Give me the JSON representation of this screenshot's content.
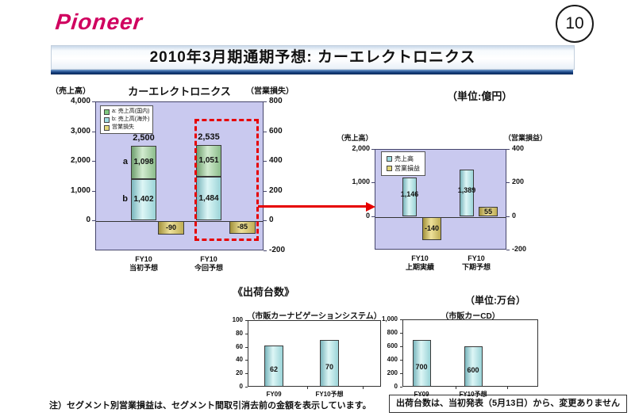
{
  "header": {
    "logo_text": "Pioneer",
    "page_number": "10",
    "title": "2010年3月期通期予想: カーエレクトロニクス"
  },
  "notes": {
    "unit_top": "（単位:億円）",
    "shipments_heading": "《出荷台数》",
    "unit_bottom": "（単位:万台）",
    "footnote": "注）セグメント別営業損益は、セグメント間取引消去前の金額を表示しています。",
    "boxed_note": "出荷台数は、当初発表（5月13日）から、変更ありません"
  },
  "colors": {
    "logo_magenta": "#d0005f",
    "title_rule_blue": "#16407e",
    "plot_background_lavender": "#c9c9ef",
    "bar_green_domestic": "#8cbd8c",
    "bar_cyan_sales": "#9bd4d8",
    "bar_yellow_profit": "#d8ca74",
    "highlight_red": "#e60000"
  },
  "chart_data": [
    {
      "id": "car-electronics-annual",
      "type": "bar",
      "title": "カーエレクトロニクス",
      "left_axis": {
        "label": "（売上高）",
        "range": [
          -1000,
          4000
        ],
        "ticks": [
          {
            "v": 4000,
            "t": "4,000"
          },
          {
            "v": 3000,
            "t": "3,000"
          },
          {
            "v": 2000,
            "t": "2,000"
          },
          {
            "v": 1000,
            "t": "1,000"
          },
          {
            "v": 0,
            "t": "0"
          }
        ]
      },
      "right_axis": {
        "label": "（営業損失）",
        "range": [
          -200,
          800
        ],
        "ticks": [
          {
            "v": 800,
            "t": "800"
          },
          {
            "v": 600,
            "t": "600"
          },
          {
            "v": 400,
            "t": "400"
          },
          {
            "v": 200,
            "t": "200"
          },
          {
            "v": 0,
            "t": "0"
          },
          {
            "v": -200,
            "t": "-200"
          }
        ]
      },
      "legend": [
        {
          "swatch": "green",
          "label": "a: 売上高(国内)"
        },
        {
          "swatch": "cyan",
          "label": "b: 売上高(海外)"
        },
        {
          "swatch": "yellow",
          "label": "営業損失"
        }
      ],
      "categories": [
        {
          "label1": "FY10",
          "label2": "当初予想",
          "domestic": 1098,
          "domestic_label": "1,098",
          "domestic_prefix": "a",
          "overseas": 1402,
          "overseas_label": "1,402",
          "overseas_prefix": "b",
          "total": 2500,
          "total_label": "2,500",
          "loss": -90,
          "loss_label": "-90",
          "highlighted": false
        },
        {
          "label1": "FY10",
          "label2": "今回予想",
          "domestic": 1051,
          "domestic_label": "1,051",
          "domestic_prefix": "",
          "overseas": 1484,
          "overseas_label": "1,484",
          "overseas_prefix": "",
          "total": 2535,
          "total_label": "2,535",
          "loss": -85,
          "loss_label": "-85",
          "highlighted": true
        }
      ]
    },
    {
      "id": "car-electronics-half-year",
      "type": "bar",
      "title": "",
      "left_axis": {
        "label": "（売上高）",
        "range": [
          -1000,
          2000
        ],
        "ticks": [
          {
            "v": 2000,
            "t": "2,000"
          },
          {
            "v": 1000,
            "t": "1,000"
          },
          {
            "v": 0,
            "t": "0"
          }
        ]
      },
      "right_axis": {
        "label": "（営業損益）",
        "range": [
          -200,
          400
        ],
        "ticks": [
          {
            "v": 400,
            "t": "400"
          },
          {
            "v": 200,
            "t": "200"
          },
          {
            "v": 0,
            "t": "0"
          },
          {
            "v": -200,
            "t": "-200"
          }
        ]
      },
      "legend": [
        {
          "swatch": "cyan",
          "label": "売上高"
        },
        {
          "swatch": "yellow",
          "label": "営業損益"
        }
      ],
      "categories": [
        {
          "label1": "FY10",
          "label2": "上期実績",
          "sales": 1146,
          "sales_label": "1,146",
          "profit": -140,
          "profit_label": "-140"
        },
        {
          "label1": "FY10",
          "label2": "下期予想",
          "sales": 1389,
          "sales_label": "1,389",
          "profit": 55,
          "profit_label": "55"
        }
      ]
    },
    {
      "id": "aftermarket-car-navigation-shipments",
      "type": "bar",
      "title": "（市販カーナビゲーションシステム）",
      "axis": {
        "range": [
          0,
          100
        ],
        "ticks": [
          {
            "v": 100,
            "t": "100"
          },
          {
            "v": 80,
            "t": "80"
          },
          {
            "v": 60,
            "t": "60"
          },
          {
            "v": 40,
            "t": "40"
          },
          {
            "v": 20,
            "t": "20"
          },
          {
            "v": 0,
            "t": "0"
          }
        ]
      },
      "categories": [
        {
          "label": "FY09",
          "value": 62,
          "value_label": "62"
        },
        {
          "label": "FY10予想",
          "value": 70,
          "value_label": "70"
        }
      ]
    },
    {
      "id": "aftermarket-car-cd-shipments",
      "type": "bar",
      "title": "（市販カーCD）",
      "axis": {
        "range": [
          0,
          1000
        ],
        "ticks": [
          {
            "v": 1000,
            "t": "1,000"
          },
          {
            "v": 800,
            "t": "800"
          },
          {
            "v": 600,
            "t": "600"
          },
          {
            "v": 400,
            "t": "400"
          },
          {
            "v": 200,
            "t": "200"
          },
          {
            "v": 0,
            "t": "0"
          }
        ]
      },
      "categories": [
        {
          "label": "FY09",
          "value": 700,
          "value_label": "700"
        },
        {
          "label": "FY10予想",
          "value": 600,
          "value_label": "600"
        }
      ]
    }
  ]
}
